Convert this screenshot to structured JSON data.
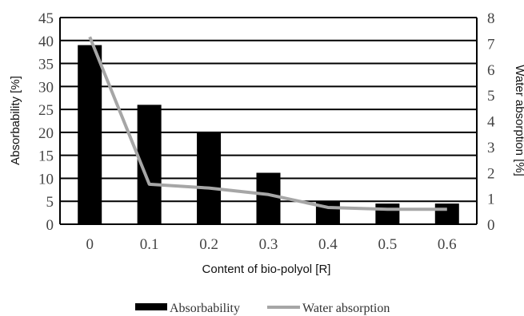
{
  "chart_data": {
    "type": "bar",
    "categories": [
      "0",
      "0.1",
      "0.2",
      "0.3",
      "0.4",
      "0.5",
      "0.6"
    ],
    "series": [
      {
        "name": "Absorbability",
        "type": "bar",
        "axis": "left",
        "color": "#000000",
        "values": [
          39,
          26,
          20,
          11.2,
          5,
          4.5,
          4.5
        ]
      },
      {
        "name": "Water absorption",
        "type": "line",
        "axis": "right",
        "color": "#a6a6a6",
        "values": [
          7.25,
          1.55,
          1.4,
          1.15,
          0.65,
          0.58,
          0.58
        ]
      }
    ],
    "xlabel": "Content of bio-polyol [R]",
    "ylabel": "Absorbability [%]",
    "y2label": "Water absorption [%]",
    "ylim": [
      0,
      45
    ],
    "y2lim": [
      0,
      8
    ],
    "yticks": [
      "0",
      "5",
      "10",
      "15",
      "20",
      "25",
      "30",
      "35",
      "40",
      "45"
    ],
    "y2ticks": [
      "0",
      "1",
      "2",
      "3",
      "4",
      "5",
      "6",
      "7",
      "8"
    ],
    "grid": true,
    "legend": "bottom"
  }
}
